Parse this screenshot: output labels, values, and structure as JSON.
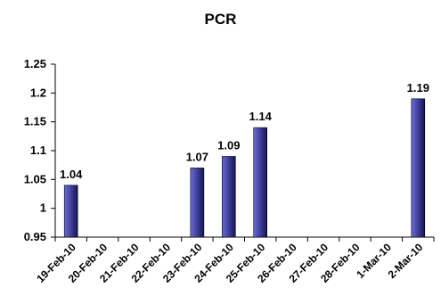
{
  "chart_data": {
    "type": "bar",
    "title": "PCR",
    "xlabel": "",
    "ylabel": "",
    "categories": [
      "19-Feb-10",
      "20-Feb-10",
      "21-Feb-10",
      "22-Feb-10",
      "23-Feb-10",
      "24-Feb-10",
      "25-Feb-10",
      "26-Feb-10",
      "27-Feb-10",
      "28-Feb-10",
      "1-Mar-10",
      "2-Mar-10"
    ],
    "values": [
      1.04,
      null,
      null,
      null,
      1.07,
      1.09,
      1.14,
      null,
      null,
      null,
      null,
      1.19
    ],
    "data_labels": [
      "1.04",
      "",
      "",
      "",
      "1.07",
      "1.09",
      "1.14",
      "",
      "",
      "",
      "",
      "1.19"
    ],
    "ylim": [
      0.95,
      1.25
    ],
    "yticks": [
      0.95,
      1.0,
      1.05,
      1.1,
      1.15,
      1.2,
      1.25
    ],
    "ytick_labels": [
      "0.95",
      "1",
      "1.05",
      "1.1",
      "1.15",
      "1.2",
      "1.25"
    ],
    "grid": false,
    "legend": "none",
    "colors": {
      "bar_light": "#6b6bd6",
      "bar_dark": "#14145a",
      "axis": "#000000"
    }
  }
}
